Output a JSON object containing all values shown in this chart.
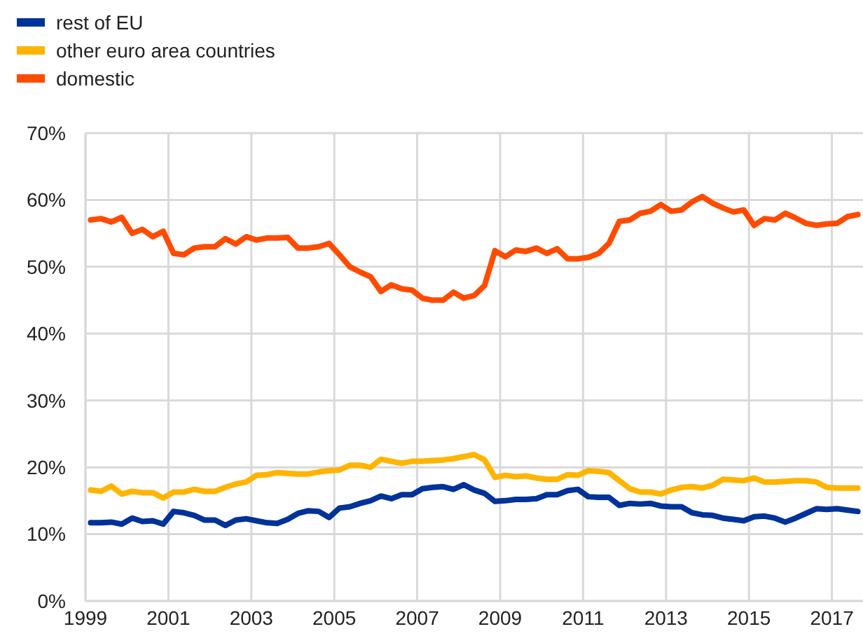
{
  "chart_data": {
    "type": "line",
    "x": [
      1999.125,
      1999.375,
      1999.625,
      1999.875,
      2000.125,
      2000.375,
      2000.625,
      2000.875,
      2001.125,
      2001.375,
      2001.625,
      2001.875,
      2002.125,
      2002.375,
      2002.625,
      2002.875,
      2003.125,
      2003.375,
      2003.625,
      2003.875,
      2004.125,
      2004.375,
      2004.625,
      2004.875,
      2005.125,
      2005.375,
      2005.625,
      2005.875,
      2006.125,
      2006.375,
      2006.625,
      2006.875,
      2007.125,
      2007.375,
      2007.625,
      2007.875,
      2008.125,
      2008.375,
      2008.625,
      2008.875,
      2009.125,
      2009.375,
      2009.625,
      2009.875,
      2010.125,
      2010.375,
      2010.625,
      2010.875,
      2011.125,
      2011.375,
      2011.625,
      2011.875,
      2012.125,
      2012.375,
      2012.625,
      2012.875,
      2013.125,
      2013.375,
      2013.625,
      2013.875,
      2014.125,
      2014.375,
      2014.625,
      2014.875,
      2015.125,
      2015.375,
      2015.625,
      2015.875,
      2016.125,
      2016.375,
      2016.625,
      2016.875,
      2017.125,
      2017.375,
      2017.625
    ],
    "series": [
      {
        "name": "rest of EU",
        "color": "#003299",
        "values": [
          11.7,
          11.7,
          11.8,
          11.5,
          12.4,
          11.9,
          12,
          11.5,
          13.4,
          13.2,
          12.8,
          12.1,
          12.1,
          11.3,
          12.1,
          12.3,
          12,
          11.7,
          11.6,
          12.2,
          13.1,
          13.5,
          13.4,
          12.5,
          13.9,
          14.1,
          14.6,
          15,
          15.7,
          15.3,
          15.9,
          15.9,
          16.8,
          17,
          17.1,
          16.7,
          17.4,
          16.6,
          16.1,
          14.9,
          15,
          15.2,
          15.2,
          15.3,
          15.9,
          15.9,
          16.5,
          16.7,
          15.6,
          15.5,
          15.5,
          14.3,
          14.6,
          14.5,
          14.6,
          14.2,
          14.1,
          14.1,
          13.2,
          12.9,
          12.8,
          12.4,
          12.2,
          12,
          12.6,
          12.7,
          12.4,
          11.8,
          12.4,
          13.1,
          13.8,
          13.7,
          13.8,
          13.6,
          13.4
        ]
      },
      {
        "name": "other euro area countries",
        "color": "#ffb400",
        "values": [
          16.6,
          16.4,
          17.2,
          16,
          16.4,
          16.2,
          16.2,
          15.4,
          16.3,
          16.3,
          16.7,
          16.4,
          16.4,
          17,
          17.5,
          17.8,
          18.8,
          18.9,
          19.2,
          19.1,
          19,
          19,
          19.3,
          19.5,
          19.6,
          20.3,
          20.3,
          20,
          21.2,
          20.9,
          20.6,
          20.9,
          20.9,
          21,
          21.1,
          21.3,
          21.6,
          21.9,
          21.1,
          18.5,
          18.8,
          18.6,
          18.7,
          18.4,
          18.2,
          18.2,
          18.9,
          18.8,
          19.5,
          19.4,
          19.2,
          18,
          16.8,
          16.3,
          16.3,
          16,
          16.6,
          17,
          17.1,
          16.9,
          17.3,
          18.2,
          18.1,
          18,
          18.4,
          17.8,
          17.8,
          17.9,
          18,
          18,
          17.8,
          17,
          16.9,
          16.9,
          16.9
        ]
      },
      {
        "name": "domestic",
        "color": "#ff4b00",
        "values": [
          57,
          57.2,
          56.7,
          57.4,
          55,
          55.6,
          54.5,
          55.3,
          52,
          51.8,
          52.8,
          53,
          53,
          54.2,
          53.4,
          54.5,
          54,
          54.3,
          54.3,
          54.4,
          52.8,
          52.8,
          53,
          53.5,
          51.8,
          50,
          49.2,
          48.5,
          46.3,
          47.3,
          46.7,
          46.5,
          45.3,
          45,
          45,
          46.2,
          45.3,
          45.7,
          47.2,
          52.4,
          51.5,
          52.5,
          52.3,
          52.8,
          52,
          52.7,
          51.2,
          51.2,
          51.4,
          52,
          53.5,
          56.8,
          57,
          58,
          58.3,
          59.3,
          58.3,
          58.5,
          59.7,
          60.5,
          59.5,
          58.8,
          58.2,
          58.5,
          56.2,
          57.2,
          57,
          58,
          57.3,
          56.5,
          56.2,
          56.4,
          56.5,
          57.5,
          57.8
        ]
      }
    ],
    "xlim": [
      1999,
      2017.75
    ],
    "xticks": [
      1999,
      2001,
      2003,
      2005,
      2007,
      2009,
      2011,
      2013,
      2015,
      2017
    ],
    "ylim": [
      0,
      70
    ],
    "yticks": [
      {
        "value": 0,
        "label": "0%"
      },
      {
        "value": 10,
        "label": "10%"
      },
      {
        "value": 20,
        "label": "20%"
      },
      {
        "value": 30,
        "label": "30%"
      },
      {
        "value": 40,
        "label": "40%"
      },
      {
        "value": 50,
        "label": "50%"
      },
      {
        "value": 60,
        "label": "60%"
      },
      {
        "value": 70,
        "label": "70%"
      }
    ],
    "grid": true,
    "legend": "top left",
    "marker": "none",
    "line_style": "solid"
  }
}
